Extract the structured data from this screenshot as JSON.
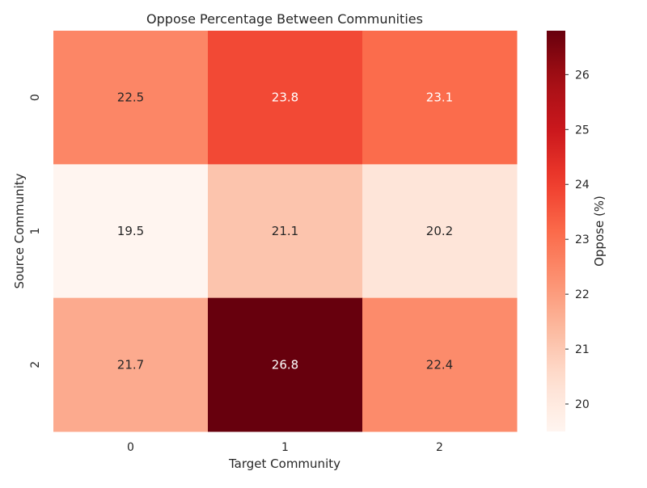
{
  "chart_data": {
    "type": "heatmap",
    "title": "Oppose Percentage Between Communities",
    "xlabel": "Target Community",
    "ylabel": "Source Community",
    "x_categories": [
      "0",
      "1",
      "2"
    ],
    "y_categories": [
      "0",
      "1",
      "2"
    ],
    "values": [
      [
        22.5,
        23.8,
        23.1
      ],
      [
        19.5,
        21.1,
        20.2
      ],
      [
        21.7,
        26.8,
        22.4
      ]
    ],
    "cell_labels": [
      [
        "22.5",
        "23.8",
        "23.1"
      ],
      [
        "19.5",
        "21.1",
        "20.2"
      ],
      [
        "21.7",
        "26.8",
        "22.4"
      ]
    ],
    "colormap": "Reds",
    "colorbar": {
      "label": "Oppose (%)",
      "range": [
        19.5,
        26.8
      ],
      "ticks": [
        "20",
        "21",
        "22",
        "23",
        "24",
        "25",
        "26"
      ]
    },
    "grid": false,
    "legend": "colorbar-right"
  }
}
